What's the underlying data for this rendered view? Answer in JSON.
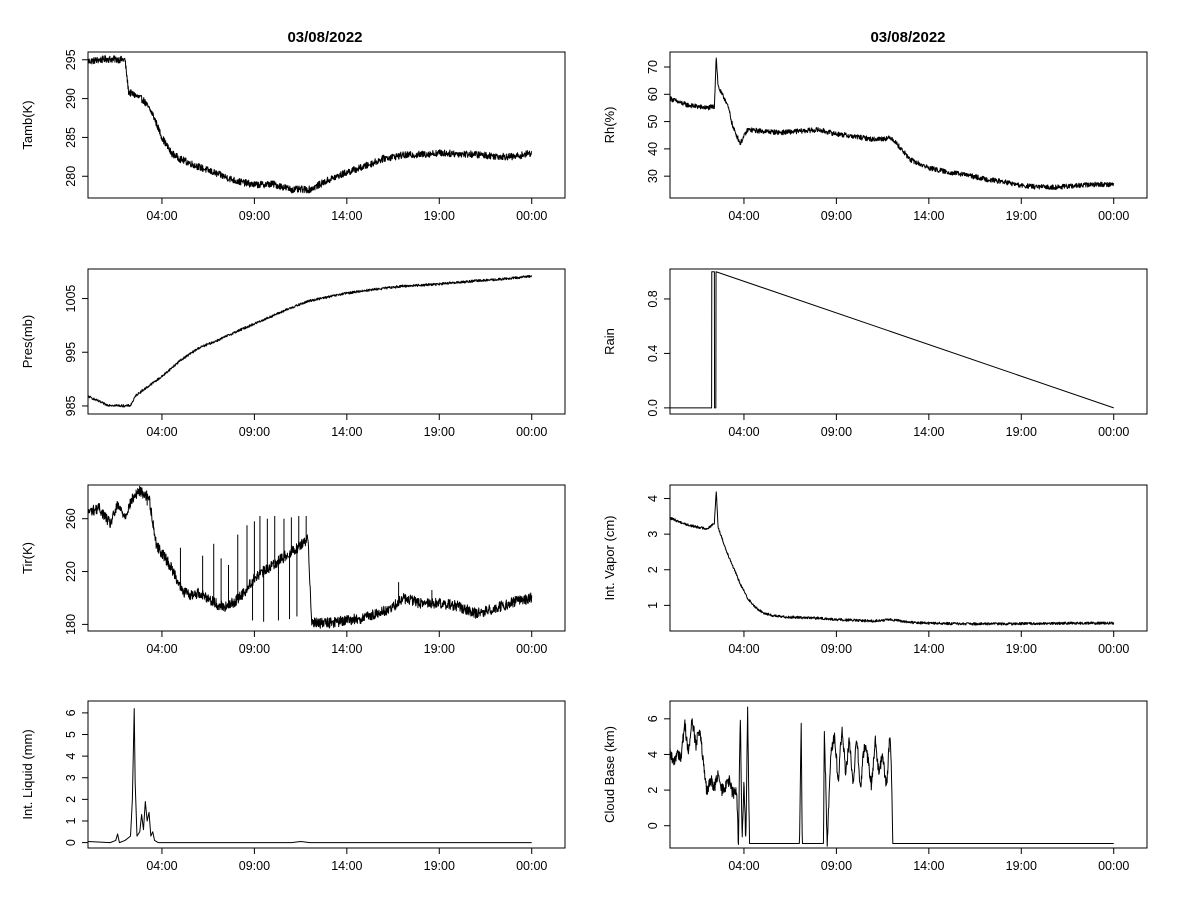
{
  "title_left": "03/08/2022",
  "title_right": "03/08/2022",
  "x_tick_labels": [
    "04:00",
    "09:00",
    "14:00",
    "19:00",
    "00:00"
  ],
  "chart_data": [
    {
      "id": "tamb",
      "type": "line",
      "ylabel": "Tamb(K)",
      "xlabel": "",
      "title": "03/08/2022",
      "xlim": [
        0,
        25.8
      ],
      "x_ticks": [
        4,
        9,
        14,
        19,
        24
      ],
      "ylim": [
        277.2,
        296.0
      ],
      "y_ticks": [
        280,
        285,
        290,
        295
      ],
      "x": [
        0.0,
        1.0,
        2.0,
        2.2,
        2.5,
        3.0,
        3.5,
        4.0,
        4.5,
        5.0,
        6.0,
        7.0,
        8.0,
        9.0,
        10.0,
        11.0,
        12.0,
        13.0,
        14.0,
        15.0,
        16.0,
        17.0,
        18.0,
        19.0,
        20.0,
        21.0,
        22.0,
        23.0,
        24.0
      ],
      "values": [
        294.8,
        295.1,
        295.0,
        290.8,
        290.5,
        289.8,
        288.0,
        285.0,
        283.0,
        282.2,
        281.2,
        280.3,
        279.4,
        278.9,
        279.0,
        278.3,
        278.3,
        279.5,
        280.5,
        281.3,
        282.3,
        282.7,
        282.8,
        283.0,
        282.9,
        282.8,
        282.6,
        282.5,
        283.0
      ],
      "noise": 0.45
    },
    {
      "id": "rh",
      "type": "line",
      "ylabel": "Rh(%)",
      "xlabel": "",
      "title": "03/08/2022",
      "xlim": [
        0,
        25.8
      ],
      "x_ticks": [
        4,
        9,
        14,
        19,
        24
      ],
      "ylim": [
        22.0,
        75.5
      ],
      "y_ticks": [
        30,
        40,
        50,
        60,
        70
      ],
      "x": [
        0.0,
        0.5,
        1.0,
        2.0,
        2.4,
        2.5,
        2.6,
        2.8,
        3.0,
        3.2,
        3.4,
        3.8,
        4.2,
        5.0,
        6.0,
        7.0,
        8.0,
        9.0,
        10.0,
        11.0,
        12.0,
        12.5,
        13.0,
        14.0,
        15.0,
        16.0,
        17.0,
        18.0,
        19.0,
        20.0,
        21.0,
        22.0,
        23.0,
        24.0
      ],
      "values": [
        58.5,
        57.0,
        56.0,
        55.0,
        55.5,
        74.0,
        63.0,
        60.0,
        58.0,
        54.0,
        48.0,
        42.0,
        47.0,
        46.5,
        46.0,
        46.5,
        47.0,
        45.5,
        44.5,
        43.5,
        44.0,
        40.0,
        36.0,
        33.0,
        31.5,
        30.5,
        29.0,
        28.0,
        26.5,
        26.0,
        26.0,
        26.5,
        27.0,
        27.0
      ],
      "noise": 0.9
    },
    {
      "id": "pres",
      "type": "line",
      "ylabel": "Pres(mb)",
      "xlabel": "",
      "title": "",
      "xlim": [
        0,
        25.8
      ],
      "x_ticks": [
        4,
        9,
        14,
        19,
        24
      ],
      "ylim": [
        983.5,
        1010.5
      ],
      "y_ticks": [
        985,
        995,
        1005
      ],
      "x": [
        0.0,
        0.5,
        1.0,
        2.0,
        2.3,
        2.6,
        3.0,
        4.0,
        5.0,
        6.0,
        7.0,
        8.0,
        9.0,
        10.0,
        11.0,
        12.0,
        13.0,
        14.0,
        15.0,
        16.0,
        17.0,
        18.0,
        19.0,
        20.0,
        21.0,
        22.0,
        23.0,
        24.0
      ],
      "values": [
        986.8,
        986.0,
        985.2,
        985.0,
        985.1,
        987.0,
        988.0,
        990.5,
        993.5,
        995.8,
        997.2,
        998.8,
        1000.3,
        1001.8,
        1003.3,
        1004.6,
        1005.3,
        1006.0,
        1006.5,
        1006.9,
        1007.3,
        1007.5,
        1007.7,
        1008.0,
        1008.3,
        1008.5,
        1008.8,
        1009.2
      ],
      "noise": 0.22
    },
    {
      "id": "rain",
      "type": "line",
      "ylabel": "Rain",
      "xlabel": "",
      "title": "",
      "xlim": [
        0,
        25.8
      ],
      "x_ticks": [
        4,
        9,
        14,
        19,
        24
      ],
      "ylim": [
        -0.045,
        1.02
      ],
      "y_ticks": [
        0.0,
        0.4,
        0.8
      ],
      "y_tick_labels": [
        "0.0",
        "0.4",
        "0.8"
      ],
      "x": [
        0.0,
        2.25,
        2.26,
        2.4,
        2.41,
        2.48,
        2.49,
        24.0
      ],
      "values": [
        0,
        0,
        1,
        1,
        0,
        0,
        1,
        0
      ],
      "noise": 0
    },
    {
      "id": "tir",
      "type": "line",
      "ylabel": "Tir(K)",
      "xlabel": "",
      "title": "",
      "xlim": [
        0,
        25.8
      ],
      "x_ticks": [
        4,
        9,
        14,
        19,
        24
      ],
      "ylim": [
        175.0,
        285.5
      ],
      "y_ticks": [
        180,
        220,
        260
      ],
      "x": [
        0.0,
        0.6,
        1.2,
        1.6,
        2.0,
        2.4,
        2.8,
        3.3,
        3.7,
        4.2,
        4.7,
        5.1,
        5.6,
        6.0,
        6.5,
        7.0,
        7.5,
        8.0,
        8.5,
        9.0,
        9.5,
        10.0,
        10.5,
        11.0,
        11.5,
        11.9,
        12.1,
        12.5,
        13.0,
        14.0,
        15.0,
        16.0,
        16.5,
        17.0,
        18.0,
        19.0,
        20.0,
        21.0,
        22.0,
        23.0,
        24.0
      ],
      "values": [
        265,
        268,
        256,
        270,
        262,
        275,
        281,
        276,
        240,
        230,
        218,
        205,
        202,
        204,
        200,
        195,
        193,
        198,
        205,
        215,
        220,
        225,
        230,
        235,
        240,
        245,
        182,
        181,
        181,
        183,
        185,
        190,
        193,
        200,
        196,
        196,
        194,
        188,
        192,
        197,
        200
      ],
      "noise": 4,
      "spikes": [
        [
          2.6,
          282
        ],
        [
          3.2,
          270
        ],
        [
          5.0,
          238
        ],
        [
          6.2,
          232
        ],
        [
          6.8,
          241
        ],
        [
          7.2,
          230
        ],
        [
          7.6,
          225
        ],
        [
          8.1,
          248
        ],
        [
          8.6,
          255
        ],
        [
          9.0,
          258
        ],
        [
          9.3,
          262
        ],
        [
          9.7,
          260
        ],
        [
          10.1,
          262
        ],
        [
          10.6,
          260
        ],
        [
          11.0,
          261
        ],
        [
          11.4,
          262
        ],
        [
          11.8,
          262
        ],
        [
          8.9,
          183
        ],
        [
          9.5,
          182
        ],
        [
          10.3,
          183
        ],
        [
          10.9,
          184
        ],
        [
          11.3,
          186
        ],
        [
          16.8,
          212
        ],
        [
          18.6,
          206
        ]
      ]
    },
    {
      "id": "vapor",
      "type": "line",
      "ylabel": "Int. Vapor (cm)",
      "xlabel": "",
      "title": "",
      "xlim": [
        0,
        25.8
      ],
      "x_ticks": [
        4,
        9,
        14,
        19,
        24
      ],
      "ylim": [
        0.28,
        4.38
      ],
      "y_ticks": [
        1,
        2,
        3,
        4
      ],
      "x": [
        0.0,
        0.5,
        1.0,
        1.5,
        2.0,
        2.4,
        2.5,
        2.6,
        2.8,
        3.0,
        3.4,
        3.8,
        4.2,
        4.6,
        5.0,
        5.5,
        6.0,
        7.0,
        8.0,
        9.0,
        10.0,
        11.0,
        12.0,
        13.0,
        14.0,
        16.0,
        18.0,
        20.0,
        22.0,
        24.0
      ],
      "values": [
        3.45,
        3.35,
        3.25,
        3.2,
        3.15,
        3.3,
        4.25,
        3.2,
        2.9,
        2.6,
        2.1,
        1.6,
        1.2,
        0.95,
        0.8,
        0.72,
        0.68,
        0.66,
        0.64,
        0.6,
        0.58,
        0.56,
        0.6,
        0.52,
        0.5,
        0.48,
        0.48,
        0.49,
        0.5,
        0.5
      ],
      "noise": 0.035
    },
    {
      "id": "liquid",
      "type": "line",
      "ylabel": "Int. Liquid (mm)",
      "xlabel": "",
      "title": "",
      "xlim": [
        0,
        25.8
      ],
      "x_ticks": [
        4,
        9,
        14,
        19,
        24
      ],
      "ylim": [
        -0.25,
        6.55
      ],
      "y_ticks": [
        0,
        1,
        2,
        3,
        4,
        5,
        6
      ],
      "x": [
        0.0,
        1.2,
        1.5,
        1.6,
        1.7,
        2.0,
        2.3,
        2.4,
        2.5,
        2.55,
        2.65,
        2.8,
        2.9,
        3.0,
        3.1,
        3.2,
        3.3,
        3.4,
        3.5,
        3.6,
        3.8,
        4.0,
        11.0,
        11.5,
        12.0,
        24.0
      ],
      "values": [
        0.05,
        0.0,
        0.1,
        0.4,
        0.0,
        0.1,
        0.3,
        2.0,
        6.2,
        2.8,
        0.3,
        0.5,
        1.3,
        0.6,
        1.9,
        1.0,
        1.4,
        0.3,
        0.5,
        0.1,
        0.0,
        0.0,
        0.0,
        0.05,
        0.0,
        0.0
      ],
      "noise": 0
    },
    {
      "id": "cloud",
      "type": "line",
      "ylabel": "Cloud Base (km)",
      "xlabel": "",
      "title": "",
      "xlim": [
        0,
        25.8
      ],
      "x_ticks": [
        4,
        9,
        14,
        19,
        24
      ],
      "ylim": [
        -1.25,
        7.0
      ],
      "y_ticks": [
        0,
        2,
        4,
        6
      ],
      "x": [
        0.0,
        0.2,
        0.4,
        0.6,
        0.8,
        1.0,
        1.2,
        1.4,
        1.6,
        1.8,
        2.0,
        2.2,
        2.4,
        2.6,
        2.8,
        3.0,
        3.2,
        3.4,
        3.6,
        3.7,
        3.8,
        3.9,
        4.0,
        4.1,
        4.2,
        4.3,
        4.4,
        4.5,
        7.0,
        7.1,
        7.15,
        8.3,
        8.35,
        8.5,
        8.7,
        8.9,
        9.1,
        9.3,
        9.5,
        9.7,
        9.9,
        10.1,
        10.3,
        10.5,
        10.7,
        10.9,
        11.1,
        11.3,
        11.5,
        11.7,
        11.9,
        12.0,
        12.05,
        24.0
      ],
      "values": [
        4.0,
        3.5,
        4.2,
        3.8,
        5.8,
        4.0,
        6.0,
        4.5,
        5.5,
        3.5,
        1.8,
        2.6,
        2.2,
        2.8,
        2.0,
        2.2,
        2.5,
        1.8,
        2.0,
        -1,
        6.4,
        -1,
        2.5,
        -1,
        6.5,
        -1,
        -1,
        -1,
        -1,
        5.7,
        -1,
        -1,
        5.5,
        -1,
        4.2,
        5.0,
        2.5,
        5.5,
        3.0,
        4.8,
        2.2,
        5.0,
        2.0,
        4.5,
        3.8,
        2.2,
        4.8,
        2.8,
        4.2,
        2.0,
        5.2,
        2.2,
        -1,
        -1
      ],
      "noise": 0.35,
      "drop_value": -1
    }
  ]
}
